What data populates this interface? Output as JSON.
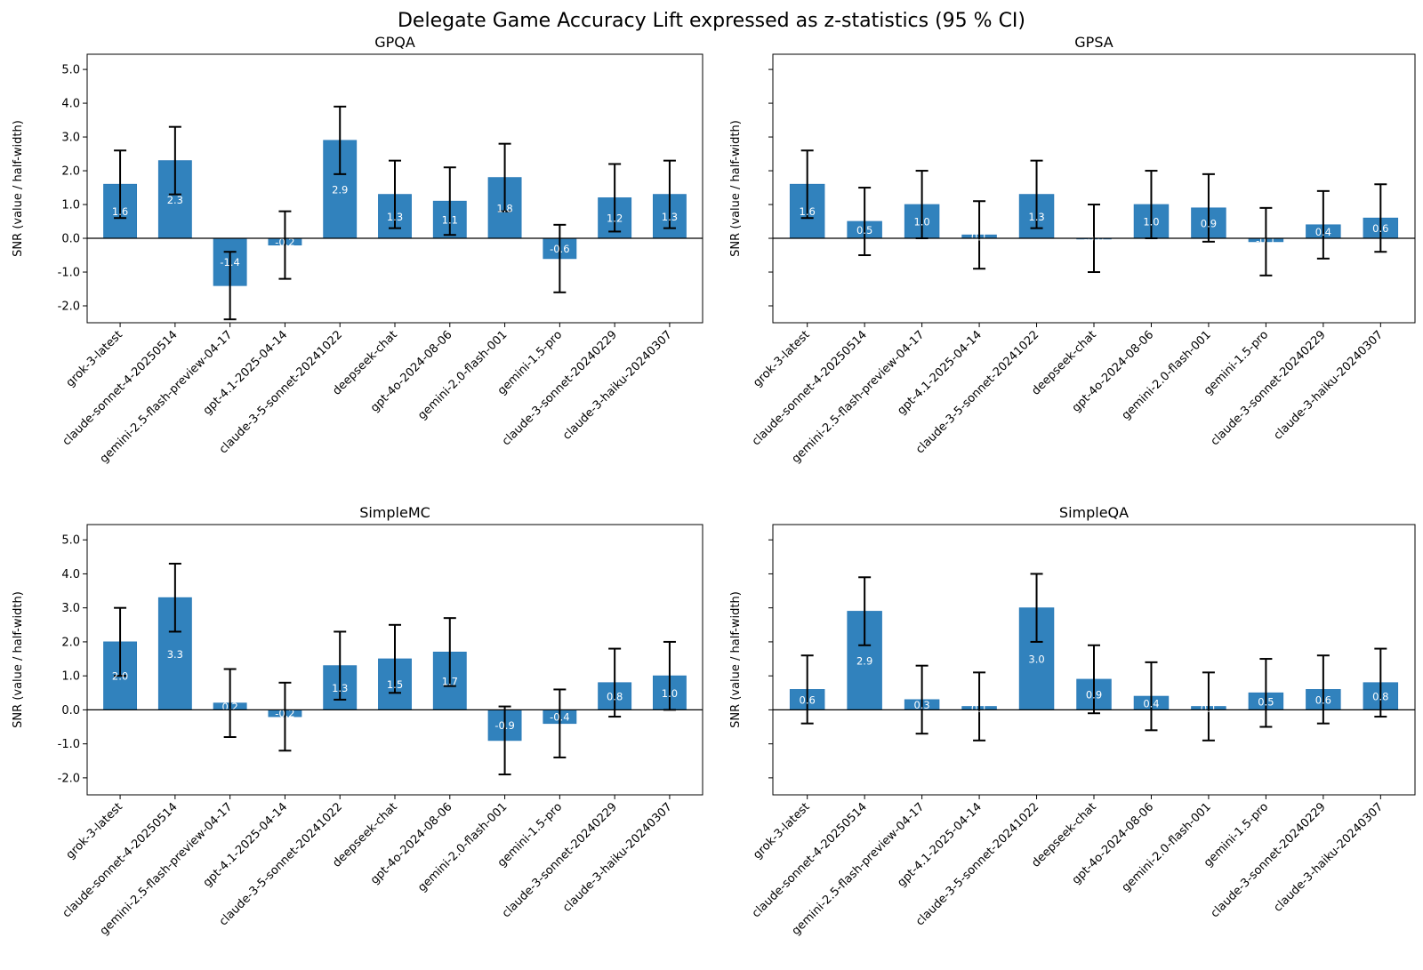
{
  "chart_data": {
    "title": "Delegate Game Accuracy Lift expressed as z-statistics (95 % CI)",
    "type": "bar",
    "categories": [
      "grok-3-latest",
      "claude-sonnet-4-20250514",
      "gemini-2.5-flash-preview-04-17",
      "gpt-4.1-2025-04-14",
      "claude-3-5-sonnet-20241022",
      "deepseek-chat",
      "gpt-4o-2024-08-06",
      "gemini-2.0-flash-001",
      "gemini-1.5-pro",
      "claude-3-sonnet-20240229",
      "claude-3-haiku-20240307"
    ],
    "ylabel": "SNR (value / half-width)",
    "ylim": [
      -2.5,
      5.45
    ],
    "yticks": [
      5.0,
      4.0,
      3.0,
      2.0,
      1.0,
      0.0,
      -1.0,
      -2.0
    ],
    "ytick_labels": [
      "5.0",
      "4.0",
      "3.0",
      "2.0",
      "1.0",
      "0.0",
      "-1.0",
      "-2.0"
    ],
    "error_bar_halfwidth": 1.0,
    "bar_color": "#3182bd",
    "panels": [
      {
        "title": "GPQA",
        "show_ytick_labels": true,
        "values": [
          1.6,
          2.3,
          -1.4,
          -0.2,
          2.9,
          1.3,
          1.1,
          1.8,
          -0.6,
          1.2,
          1.3
        ],
        "labels": [
          "1.6",
          "2.3",
          "-1.4",
          "-0.2",
          "2.9",
          "1.3",
          "1.1",
          "1.8",
          "-0.6",
          "1.2",
          "1.3"
        ]
      },
      {
        "title": "GPSA",
        "show_ytick_labels": false,
        "values": [
          1.6,
          0.5,
          1.0,
          0.1,
          1.3,
          -0.0,
          1.0,
          0.9,
          -0.1,
          0.4,
          0.6
        ],
        "labels": [
          "1.6",
          "0.5",
          "1.0",
          "0.1",
          "1.3",
          "-0.0",
          "1.0",
          "0.9",
          "-0.1",
          "0.4",
          "0.6"
        ]
      },
      {
        "title": "SimpleMC",
        "show_ytick_labels": true,
        "values": [
          2.0,
          3.3,
          0.2,
          -0.2,
          1.3,
          1.5,
          1.7,
          -0.9,
          -0.4,
          0.8,
          1.0
        ],
        "labels": [
          "2.0",
          "3.3",
          "0.2",
          "-0.2",
          "1.3",
          "1.5",
          "1.7",
          "-0.9",
          "-0.4",
          "0.8",
          "1.0"
        ]
      },
      {
        "title": "SimpleQA",
        "show_ytick_labels": false,
        "values": [
          0.6,
          2.9,
          0.3,
          0.1,
          3.0,
          0.9,
          0.4,
          0.1,
          0.5,
          0.6,
          0.8
        ],
        "labels": [
          "0.6",
          "2.9",
          "0.3",
          "0.1",
          "3.0",
          "0.9",
          "0.4",
          "0.1",
          "0.5",
          "0.6",
          "0.8"
        ]
      }
    ]
  }
}
